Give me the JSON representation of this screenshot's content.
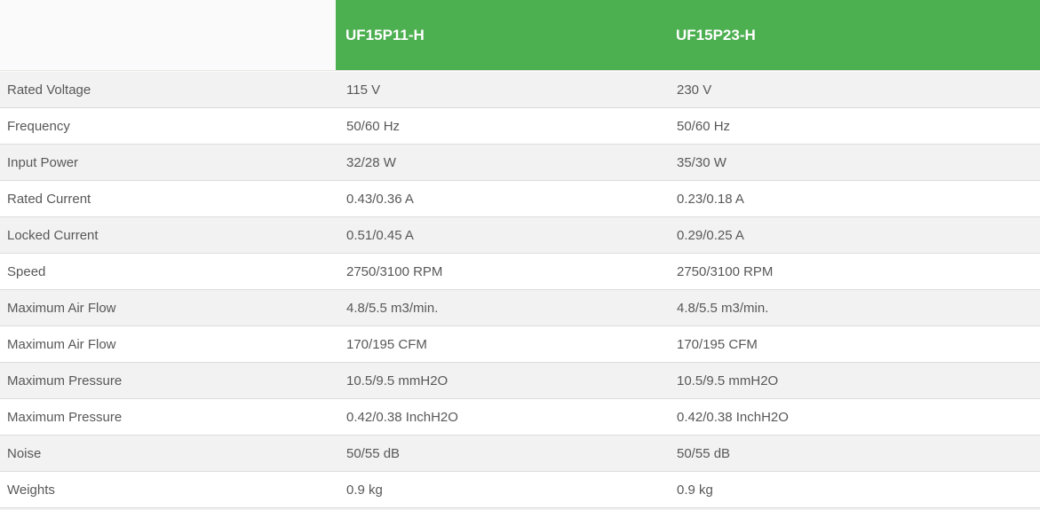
{
  "table": {
    "columns": [
      "UF15P11-H",
      "UF15P23-H"
    ],
    "rows": [
      {
        "label": "Rated Voltage",
        "values": [
          "115 V",
          "230 V"
        ]
      },
      {
        "label": "Frequency",
        "values": [
          "50/60 Hz",
          "50/60 Hz"
        ]
      },
      {
        "label": "Input Power",
        "values": [
          "32/28 W",
          "35/30 W"
        ]
      },
      {
        "label": "Rated Current",
        "values": [
          "0.43/0.36 A",
          "0.23/0.18 A"
        ]
      },
      {
        "label": "Locked Current",
        "values": [
          "0.51/0.45 A",
          "0.29/0.25 A"
        ]
      },
      {
        "label": "Speed",
        "values": [
          "2750/3100 RPM",
          "2750/3100 RPM"
        ]
      },
      {
        "label": "Maximum Air Flow",
        "values": [
          "4.8/5.5 m3/min.",
          "4.8/5.5 m3/min."
        ]
      },
      {
        "label": "Maximum Air Flow",
        "values": [
          "170/195 CFM",
          "170/195 CFM"
        ]
      },
      {
        "label": "Maximum Pressure",
        "values": [
          "10.5/9.5 mmH2O",
          "10.5/9.5 mmH2O"
        ]
      },
      {
        "label": "Maximum Pressure",
        "values": [
          "0.42/0.38 InchH2O",
          "0.42/0.38 InchH2O"
        ]
      },
      {
        "label": "Noise",
        "values": [
          "50/55 dB",
          "50/55 dB"
        ]
      },
      {
        "label": "Weights",
        "values": [
          "0.9 kg",
          "0.9 kg"
        ]
      }
    ],
    "colors": {
      "header_green": "#4CAF50",
      "header_text": "#ffffff",
      "row_alt_gray": "#f2f2f2",
      "row_white": "#ffffff",
      "row_border": "#dcdcdc",
      "body_text": "#58585a",
      "header_blank_bg": "#fafafa"
    }
  }
}
